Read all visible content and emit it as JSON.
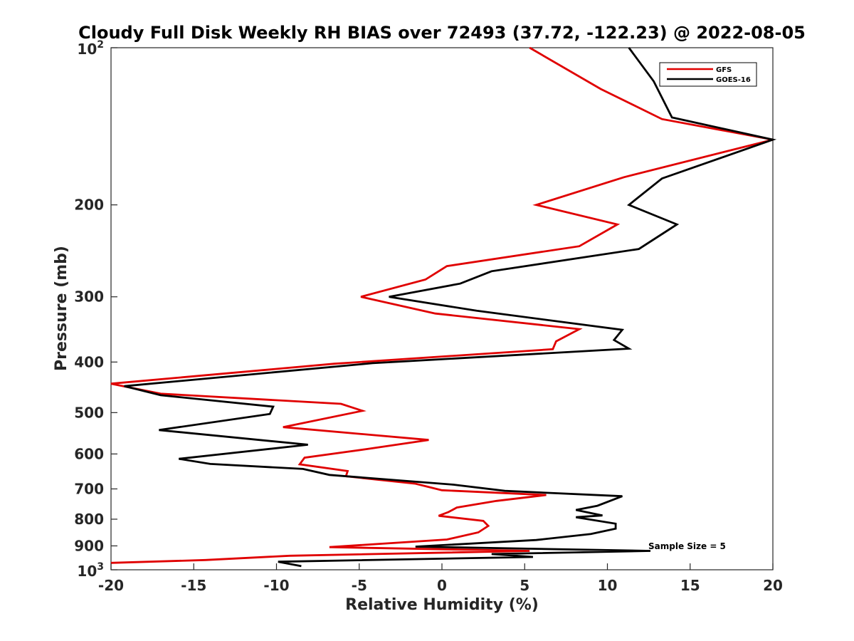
{
  "chart_data": {
    "type": "line",
    "title": "Cloudy Full Disk Weekly RH BIAS over 72493 (37.72, -122.23) @ 2022-08-05",
    "xlabel": "Relative Humidity (%)",
    "ylabel": "Pressure (mb)",
    "xlim": [
      -20,
      20
    ],
    "ylim": [
      100,
      1000
    ],
    "y_scale": "log",
    "y_reversed": true,
    "x_ticks": [
      "-20",
      "-15",
      "-10",
      "-5",
      "0",
      "5",
      "10",
      "15",
      "20"
    ],
    "y_ticks": [
      {
        "value": 100,
        "base": "10",
        "exp": "2"
      },
      {
        "value": 200,
        "label": "200"
      },
      {
        "value": 300,
        "label": "300"
      },
      {
        "value": 400,
        "label": "400"
      },
      {
        "value": 500,
        "label": "500"
      },
      {
        "value": 600,
        "label": "600"
      },
      {
        "value": 700,
        "label": "700"
      },
      {
        "value": 800,
        "label": "800"
      },
      {
        "value": 900,
        "label": "900"
      },
      {
        "value": 1000,
        "base": "10",
        "exp": "3"
      }
    ],
    "grid": false,
    "legend_position": "top-right",
    "annotation": "Sample Size = 5",
    "series": [
      {
        "name": "GFS",
        "color": "#e00000",
        "points": [
          [
            5.3,
            100
          ],
          [
            9.6,
            120
          ],
          [
            13.3,
            137
          ],
          [
            20.0,
            150
          ],
          [
            11.0,
            177
          ],
          [
            5.7,
            200
          ],
          [
            10.6,
            218
          ],
          [
            8.3,
            240
          ],
          [
            0.3,
            262
          ],
          [
            -1.0,
            278
          ],
          [
            -4.9,
            300
          ],
          [
            -0.4,
            323
          ],
          [
            8.3,
            346
          ],
          [
            6.9,
            365
          ],
          [
            6.7,
            378
          ],
          [
            -6.5,
            403
          ],
          [
            -20.0,
            440
          ],
          [
            -17.0,
            460
          ],
          [
            -6.1,
            481
          ],
          [
            -4.8,
            496
          ],
          [
            -9.6,
            533
          ],
          [
            -0.8,
            564
          ],
          [
            -4.5,
            587
          ],
          [
            -8.3,
            610
          ],
          [
            -8.6,
            628
          ],
          [
            -5.7,
            647
          ],
          [
            -5.8,
            662
          ],
          [
            -1.6,
            684
          ],
          [
            0.0,
            704
          ],
          [
            6.3,
            719
          ],
          [
            3.3,
            738
          ],
          [
            0.9,
            760
          ],
          [
            0.4,
            775
          ],
          [
            -0.2,
            788
          ],
          [
            2.5,
            806
          ],
          [
            2.8,
            824
          ],
          [
            2.2,
            848
          ],
          [
            0.3,
            875
          ],
          [
            -6.8,
            905
          ],
          [
            5.3,
            920
          ],
          [
            -9.2,
            940
          ],
          [
            -14.3,
            958
          ],
          [
            -20.0,
            970
          ]
        ]
      },
      {
        "name": "GOES-16",
        "color": "#000000",
        "points": [
          [
            11.3,
            100
          ],
          [
            12.8,
            116
          ],
          [
            13.9,
            136
          ],
          [
            20.0,
            150
          ],
          [
            13.3,
            178
          ],
          [
            11.3,
            200
          ],
          [
            14.2,
            218
          ],
          [
            11.9,
            243
          ],
          [
            3.0,
            268
          ],
          [
            1.1,
            283
          ],
          [
            -3.2,
            300
          ],
          [
            2.1,
            319
          ],
          [
            10.9,
            347
          ],
          [
            10.4,
            363
          ],
          [
            11.3,
            377
          ],
          [
            -4.2,
            402
          ],
          [
            -19.2,
            445
          ],
          [
            -17.0,
            463
          ],
          [
            -10.2,
            487
          ],
          [
            -10.4,
            503
          ],
          [
            -17.1,
            540
          ],
          [
            -8.1,
            576
          ],
          [
            -15.9,
            613
          ],
          [
            -14.0,
            627
          ],
          [
            -8.4,
            641
          ],
          [
            -6.8,
            658
          ],
          [
            0.7,
            687
          ],
          [
            3.8,
            706
          ],
          [
            10.9,
            723
          ],
          [
            9.4,
            754
          ],
          [
            8.1,
            768
          ],
          [
            9.7,
            787
          ],
          [
            8.1,
            793
          ],
          [
            10.5,
            816
          ],
          [
            10.5,
            834
          ],
          [
            9.0,
            854
          ],
          [
            5.7,
            877
          ],
          [
            -1.6,
            903
          ],
          [
            12.6,
            920
          ],
          [
            3.0,
            933
          ],
          [
            5.5,
            945
          ],
          [
            -9.9,
            965
          ],
          [
            -8.5,
            984
          ]
        ]
      }
    ]
  }
}
